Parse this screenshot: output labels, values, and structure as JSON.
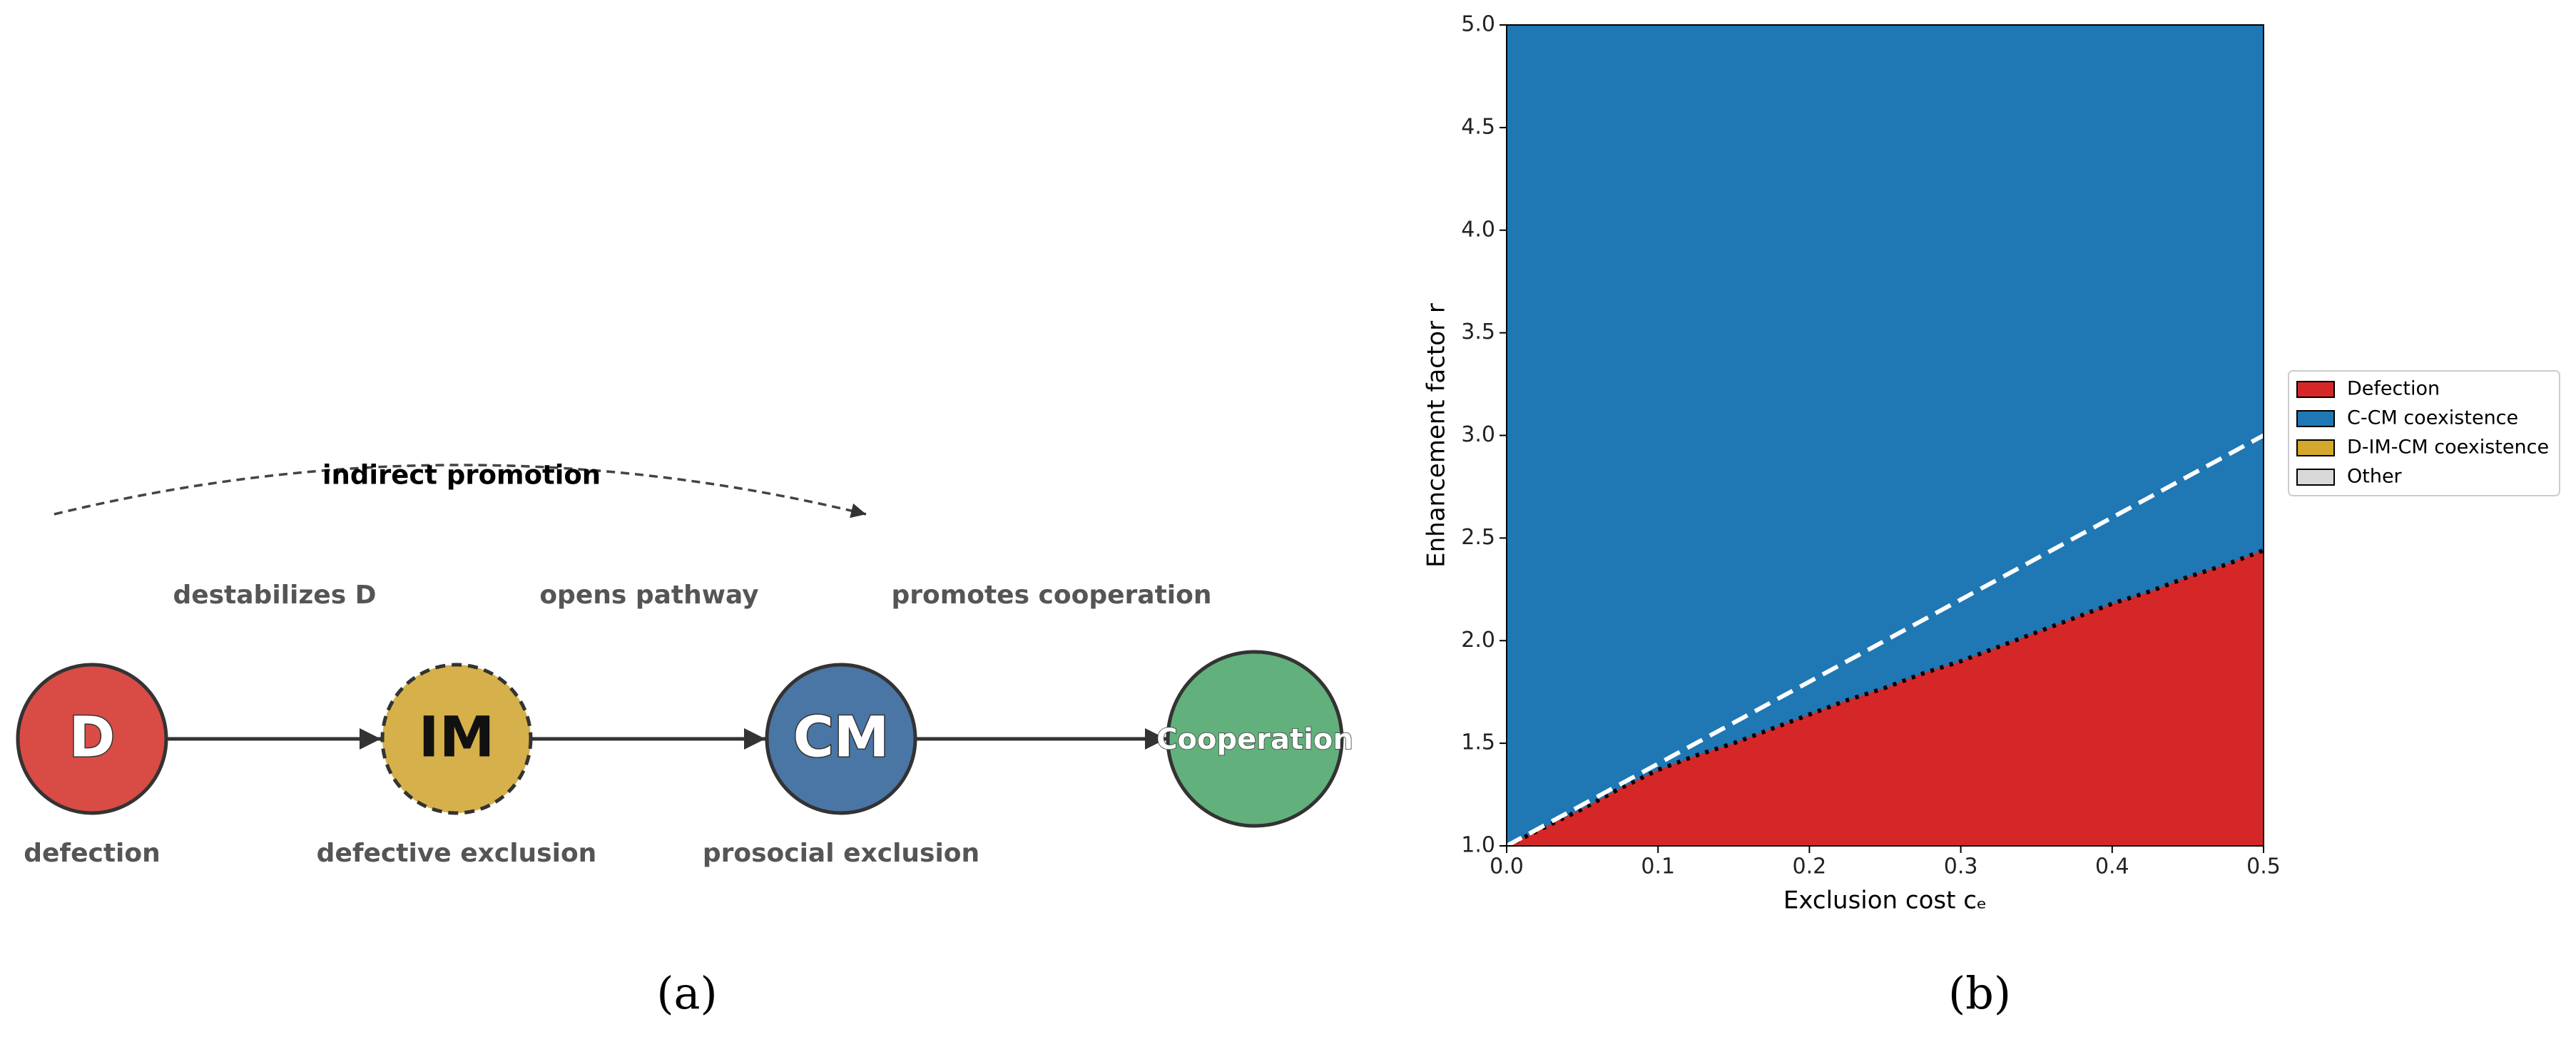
{
  "diagram": {
    "title": "indirect promotion",
    "nodes": [
      {
        "label": "D",
        "caption": "defection",
        "color": "#d84c45"
      },
      {
        "label": "IM",
        "caption": "defective exclusion",
        "color": "#d6b04a"
      },
      {
        "label": "CM",
        "caption": "prosocial exclusion",
        "color": "#4a76a6"
      },
      {
        "label": "Cooperation",
        "color": "#62b07c"
      }
    ],
    "edges": [
      {
        "label": "destabilizes D"
      },
      {
        "label": "opens pathway"
      },
      {
        "label": "promotes cooperation"
      }
    ],
    "caption": "(a)"
  },
  "chart_data": {
    "type": "area",
    "caption": "(b)",
    "xlabel": "Exclusion cost cₑ",
    "ylabel": "Enhancement factor r",
    "x": [
      0,
      0.025,
      0.05,
      0.075,
      0.1,
      0.125,
      0.15,
      0.175,
      0.2,
      0.225,
      0.25,
      0.275,
      0.3,
      0.325,
      0.35,
      0.375,
      0.4,
      0.425,
      0.45,
      0.475,
      0.5
    ],
    "series": [
      {
        "name": "Defection",
        "color": "#d62728",
        "values": [
          1.0,
          1.09,
          1.18,
          1.28,
          1.37,
          1.44,
          1.5,
          1.57,
          1.64,
          1.71,
          1.77,
          1.84,
          1.9,
          1.97,
          2.04,
          2.11,
          2.18,
          2.24,
          2.31,
          2.37,
          2.44
        ]
      },
      {
        "name": "C-CM coexistence",
        "color": "#1f77b4"
      },
      {
        "name": "D-IM-CM coexistence",
        "color": "#d4a82c"
      },
      {
        "name": "Other",
        "color": "#d9d9d9"
      }
    ],
    "reference_line": {
      "x": [
        0,
        0.5
      ],
      "values": [
        1,
        3
      ],
      "color": "#ffffff"
    },
    "xlim": [
      0,
      0.5
    ],
    "ylim": [
      1,
      5
    ],
    "xticks": [
      {
        "value": 0,
        "label": "0.0"
      },
      0.1,
      0.2,
      0.3,
      0.4,
      0.5
    ],
    "yticks": [
      {
        "value": 1,
        "label": "1.0"
      },
      1.5,
      {
        "value": 2,
        "label": "2.0"
      },
      2.5,
      {
        "value": 3,
        "label": "3.0"
      },
      3.5,
      {
        "value": 4,
        "label": "4.0"
      },
      4.5,
      {
        "value": 5,
        "label": "5.0"
      }
    ]
  }
}
